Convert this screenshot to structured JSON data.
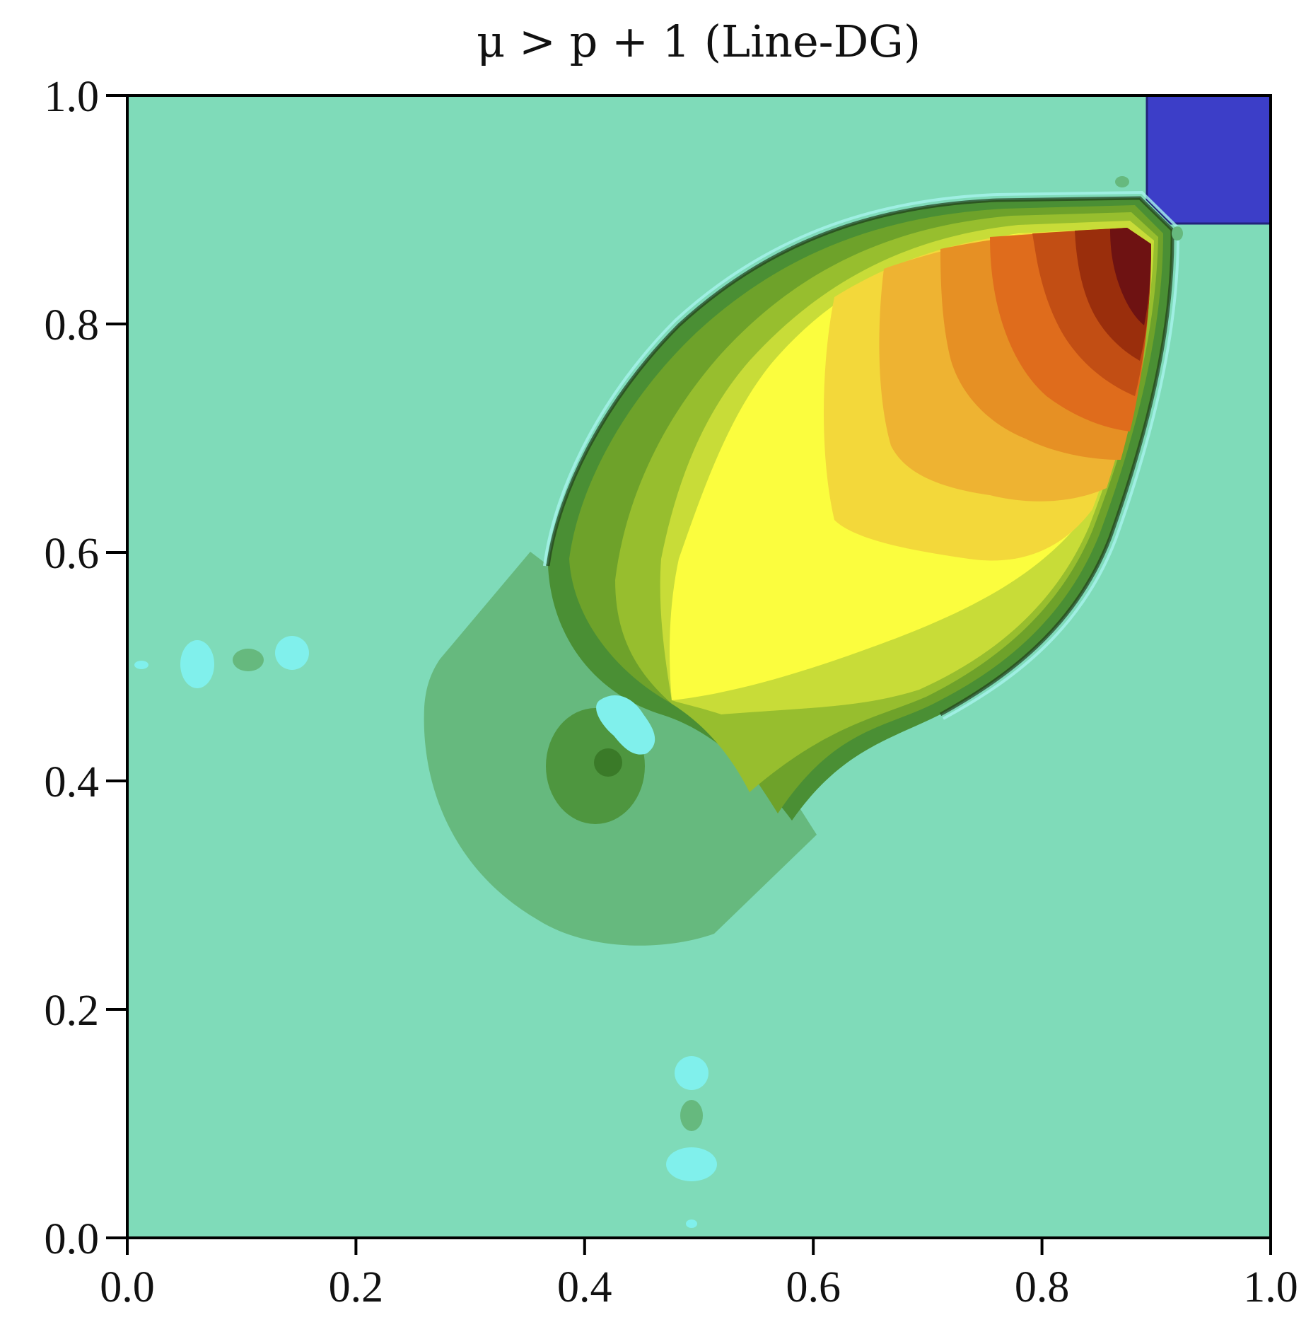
{
  "chart_data": {
    "type": "heatmap",
    "title": "μ > p + 1 (Line-DG)",
    "xlabel": "",
    "ylabel": "",
    "xlim": [
      0.0,
      1.0
    ],
    "ylim": [
      0.0,
      1.0
    ],
    "x_ticks": [
      "0.0",
      "0.2",
      "0.4",
      "0.6",
      "0.8",
      "1.0"
    ],
    "y_ticks": [
      "0.0",
      "0.2",
      "0.4",
      "0.6",
      "0.8",
      "1.0"
    ],
    "colorbar": "none",
    "grid": false,
    "background_color": "#7fdbb9",
    "colormap": [
      "#3c3ec8",
      "#80f0ec",
      "#7fdbb9",
      "#66b97e",
      "#4a8f34",
      "#6ea22a",
      "#97be2e",
      "#c8dc38",
      "#fbfd3e",
      "#f3d83a",
      "#eeb332",
      "#e69024",
      "#df6c1c",
      "#c24e14",
      "#9a2e0c",
      "#6e1212"
    ]
  }
}
